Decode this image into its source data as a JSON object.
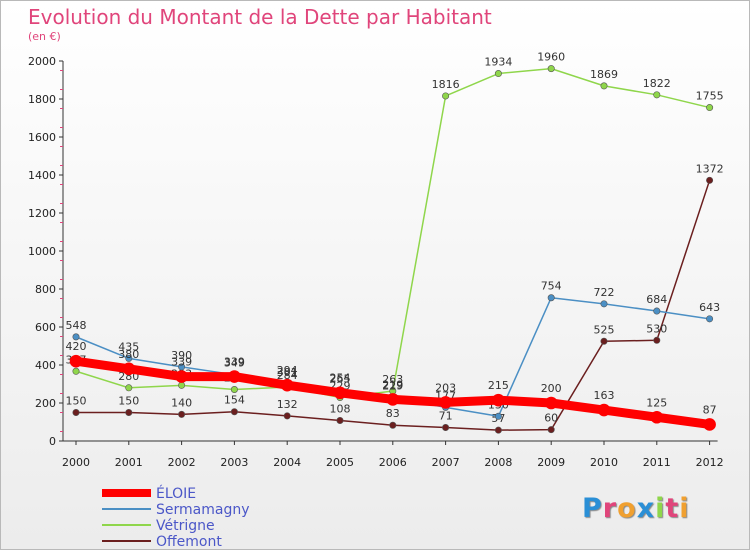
{
  "chart_data": {
    "type": "line",
    "title": "Evolution du Montant de la Dette par Habitant",
    "unit_label": "(en €)",
    "x": [
      "2000",
      "2001",
      "2002",
      "2003",
      "2004",
      "2005",
      "2006",
      "2007",
      "2008",
      "2009",
      "2010",
      "2011",
      "2012"
    ],
    "y_ticks": [
      "0",
      "200",
      "400",
      "600",
      "800",
      "1000",
      "1200",
      "1400",
      "1600",
      "1800",
      "2000"
    ],
    "ylim": [
      0,
      2000
    ],
    "grid": false,
    "legend_position": "bottom-left",
    "series": [
      {
        "name": "Offemont",
        "color": "#6b1f1f",
        "values": [
          150,
          150,
          140,
          154,
          132,
          108,
          83,
          71,
          57,
          60,
          525,
          530,
          1372
        ]
      },
      {
        "name": "Vétrigne",
        "color": "#8fd64b",
        "values": [
          367,
          280,
          293,
          271,
          284,
          229,
          263,
          1816,
          1934,
          1960,
          1869,
          1822,
          1755
        ]
      },
      {
        "name": "Sermamagny",
        "color": "#4b8fc4",
        "values": [
          548,
          435,
          390,
          349,
          301,
          265,
          229,
          177,
          130,
          754,
          722,
          684,
          643
        ]
      },
      {
        "name": "ÉLOIE",
        "color": "#ff0000",
        "values": [
          420,
          380,
          339,
          339,
          294,
          254,
          219,
          203,
          215,
          200,
          163,
          125,
          87
        ]
      }
    ],
    "legend": [
      {
        "name": "ÉLOIE",
        "color": "#ff0000"
      },
      {
        "name": "Sermamagny",
        "color": "#4b8fc4"
      },
      {
        "name": "Vétrigne",
        "color": "#8fd64b"
      },
      {
        "name": "Offemont",
        "color": "#6b1f1f"
      }
    ]
  },
  "logo": {
    "letters": [
      {
        "ch": "P",
        "color": "#2a8fd6"
      },
      {
        "ch": "r",
        "color": "#e0457b"
      },
      {
        "ch": "o",
        "color": "#f0a030"
      },
      {
        "ch": "x",
        "color": "#2a8fd6"
      },
      {
        "ch": "i",
        "color": "#8fd64b"
      },
      {
        "ch": "t",
        "color": "#e0457b"
      },
      {
        "ch": "i",
        "color": "#f0a030"
      }
    ]
  }
}
